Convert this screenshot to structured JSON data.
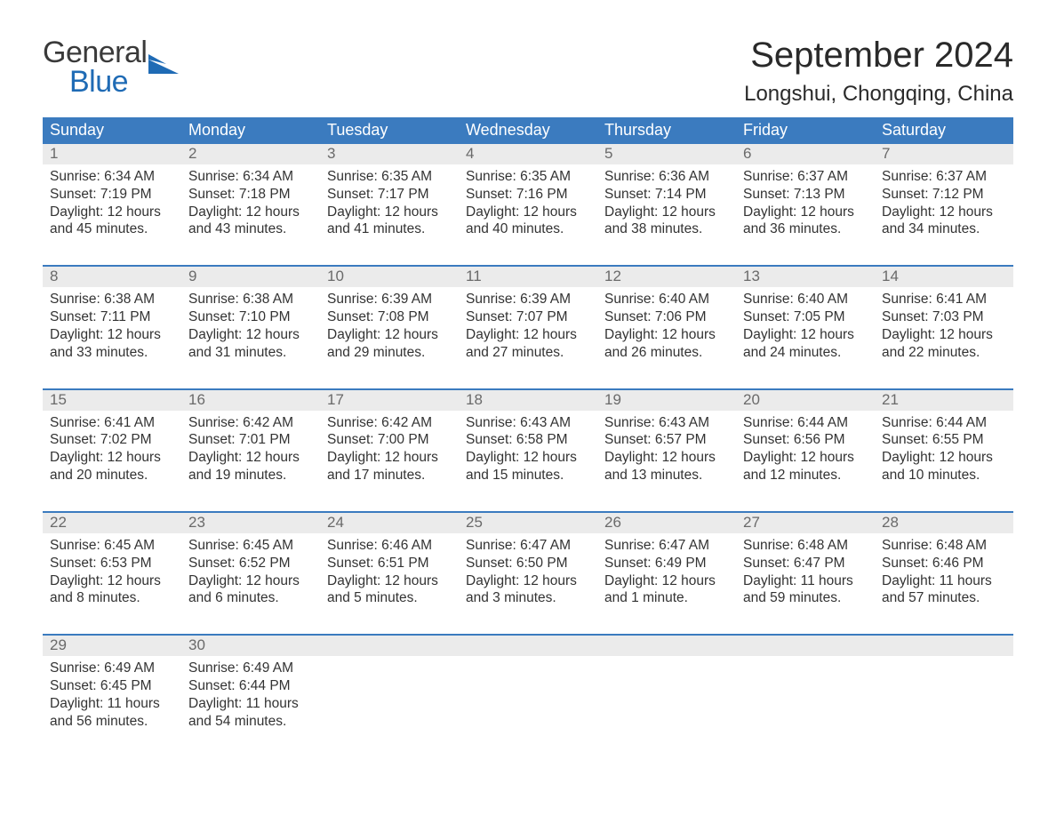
{
  "brand": {
    "word1": "General",
    "word2": "Blue",
    "accent_color": "#1f6bb5",
    "text_color": "#3a3a3a"
  },
  "title": "September 2024",
  "location": "Longshui, Chongqing, China",
  "colors": {
    "header_bg": "#3b7bbf",
    "header_text": "#ffffff",
    "strip_bg": "#ebebeb",
    "day_num_color": "#6a6a6a",
    "body_text": "#333333",
    "week_border": "#3b7bbf",
    "page_bg": "#ffffff"
  },
  "days_of_week": [
    "Sunday",
    "Monday",
    "Tuesday",
    "Wednesday",
    "Thursday",
    "Friday",
    "Saturday"
  ],
  "weeks": [
    [
      {
        "n": "1",
        "sunrise": "Sunrise: 6:34 AM",
        "sunset": "Sunset: 7:19 PM",
        "d1": "Daylight: 12 hours",
        "d2": "and 45 minutes."
      },
      {
        "n": "2",
        "sunrise": "Sunrise: 6:34 AM",
        "sunset": "Sunset: 7:18 PM",
        "d1": "Daylight: 12 hours",
        "d2": "and 43 minutes."
      },
      {
        "n": "3",
        "sunrise": "Sunrise: 6:35 AM",
        "sunset": "Sunset: 7:17 PM",
        "d1": "Daylight: 12 hours",
        "d2": "and 41 minutes."
      },
      {
        "n": "4",
        "sunrise": "Sunrise: 6:35 AM",
        "sunset": "Sunset: 7:16 PM",
        "d1": "Daylight: 12 hours",
        "d2": "and 40 minutes."
      },
      {
        "n": "5",
        "sunrise": "Sunrise: 6:36 AM",
        "sunset": "Sunset: 7:14 PM",
        "d1": "Daylight: 12 hours",
        "d2": "and 38 minutes."
      },
      {
        "n": "6",
        "sunrise": "Sunrise: 6:37 AM",
        "sunset": "Sunset: 7:13 PM",
        "d1": "Daylight: 12 hours",
        "d2": "and 36 minutes."
      },
      {
        "n": "7",
        "sunrise": "Sunrise: 6:37 AM",
        "sunset": "Sunset: 7:12 PM",
        "d1": "Daylight: 12 hours",
        "d2": "and 34 minutes."
      }
    ],
    [
      {
        "n": "8",
        "sunrise": "Sunrise: 6:38 AM",
        "sunset": "Sunset: 7:11 PM",
        "d1": "Daylight: 12 hours",
        "d2": "and 33 minutes."
      },
      {
        "n": "9",
        "sunrise": "Sunrise: 6:38 AM",
        "sunset": "Sunset: 7:10 PM",
        "d1": "Daylight: 12 hours",
        "d2": "and 31 minutes."
      },
      {
        "n": "10",
        "sunrise": "Sunrise: 6:39 AM",
        "sunset": "Sunset: 7:08 PM",
        "d1": "Daylight: 12 hours",
        "d2": "and 29 minutes."
      },
      {
        "n": "11",
        "sunrise": "Sunrise: 6:39 AM",
        "sunset": "Sunset: 7:07 PM",
        "d1": "Daylight: 12 hours",
        "d2": "and 27 minutes."
      },
      {
        "n": "12",
        "sunrise": "Sunrise: 6:40 AM",
        "sunset": "Sunset: 7:06 PM",
        "d1": "Daylight: 12 hours",
        "d2": "and 26 minutes."
      },
      {
        "n": "13",
        "sunrise": "Sunrise: 6:40 AM",
        "sunset": "Sunset: 7:05 PM",
        "d1": "Daylight: 12 hours",
        "d2": "and 24 minutes."
      },
      {
        "n": "14",
        "sunrise": "Sunrise: 6:41 AM",
        "sunset": "Sunset: 7:03 PM",
        "d1": "Daylight: 12 hours",
        "d2": "and 22 minutes."
      }
    ],
    [
      {
        "n": "15",
        "sunrise": "Sunrise: 6:41 AM",
        "sunset": "Sunset: 7:02 PM",
        "d1": "Daylight: 12 hours",
        "d2": "and 20 minutes."
      },
      {
        "n": "16",
        "sunrise": "Sunrise: 6:42 AM",
        "sunset": "Sunset: 7:01 PM",
        "d1": "Daylight: 12 hours",
        "d2": "and 19 minutes."
      },
      {
        "n": "17",
        "sunrise": "Sunrise: 6:42 AM",
        "sunset": "Sunset: 7:00 PM",
        "d1": "Daylight: 12 hours",
        "d2": "and 17 minutes."
      },
      {
        "n": "18",
        "sunrise": "Sunrise: 6:43 AM",
        "sunset": "Sunset: 6:58 PM",
        "d1": "Daylight: 12 hours",
        "d2": "and 15 minutes."
      },
      {
        "n": "19",
        "sunrise": "Sunrise: 6:43 AM",
        "sunset": "Sunset: 6:57 PM",
        "d1": "Daylight: 12 hours",
        "d2": "and 13 minutes."
      },
      {
        "n": "20",
        "sunrise": "Sunrise: 6:44 AM",
        "sunset": "Sunset: 6:56 PM",
        "d1": "Daylight: 12 hours",
        "d2": "and 12 minutes."
      },
      {
        "n": "21",
        "sunrise": "Sunrise: 6:44 AM",
        "sunset": "Sunset: 6:55 PM",
        "d1": "Daylight: 12 hours",
        "d2": "and 10 minutes."
      }
    ],
    [
      {
        "n": "22",
        "sunrise": "Sunrise: 6:45 AM",
        "sunset": "Sunset: 6:53 PM",
        "d1": "Daylight: 12 hours",
        "d2": "and 8 minutes."
      },
      {
        "n": "23",
        "sunrise": "Sunrise: 6:45 AM",
        "sunset": "Sunset: 6:52 PM",
        "d1": "Daylight: 12 hours",
        "d2": "and 6 minutes."
      },
      {
        "n": "24",
        "sunrise": "Sunrise: 6:46 AM",
        "sunset": "Sunset: 6:51 PM",
        "d1": "Daylight: 12 hours",
        "d2": "and 5 minutes."
      },
      {
        "n": "25",
        "sunrise": "Sunrise: 6:47 AM",
        "sunset": "Sunset: 6:50 PM",
        "d1": "Daylight: 12 hours",
        "d2": "and 3 minutes."
      },
      {
        "n": "26",
        "sunrise": "Sunrise: 6:47 AM",
        "sunset": "Sunset: 6:49 PM",
        "d1": "Daylight: 12 hours",
        "d2": "and 1 minute."
      },
      {
        "n": "27",
        "sunrise": "Sunrise: 6:48 AM",
        "sunset": "Sunset: 6:47 PM",
        "d1": "Daylight: 11 hours",
        "d2": "and 59 minutes."
      },
      {
        "n": "28",
        "sunrise": "Sunrise: 6:48 AM",
        "sunset": "Sunset: 6:46 PM",
        "d1": "Daylight: 11 hours",
        "d2": "and 57 minutes."
      }
    ],
    [
      {
        "n": "29",
        "sunrise": "Sunrise: 6:49 AM",
        "sunset": "Sunset: 6:45 PM",
        "d1": "Daylight: 11 hours",
        "d2": "and 56 minutes."
      },
      {
        "n": "30",
        "sunrise": "Sunrise: 6:49 AM",
        "sunset": "Sunset: 6:44 PM",
        "d1": "Daylight: 11 hours",
        "d2": "and 54 minutes."
      },
      null,
      null,
      null,
      null,
      null
    ]
  ]
}
